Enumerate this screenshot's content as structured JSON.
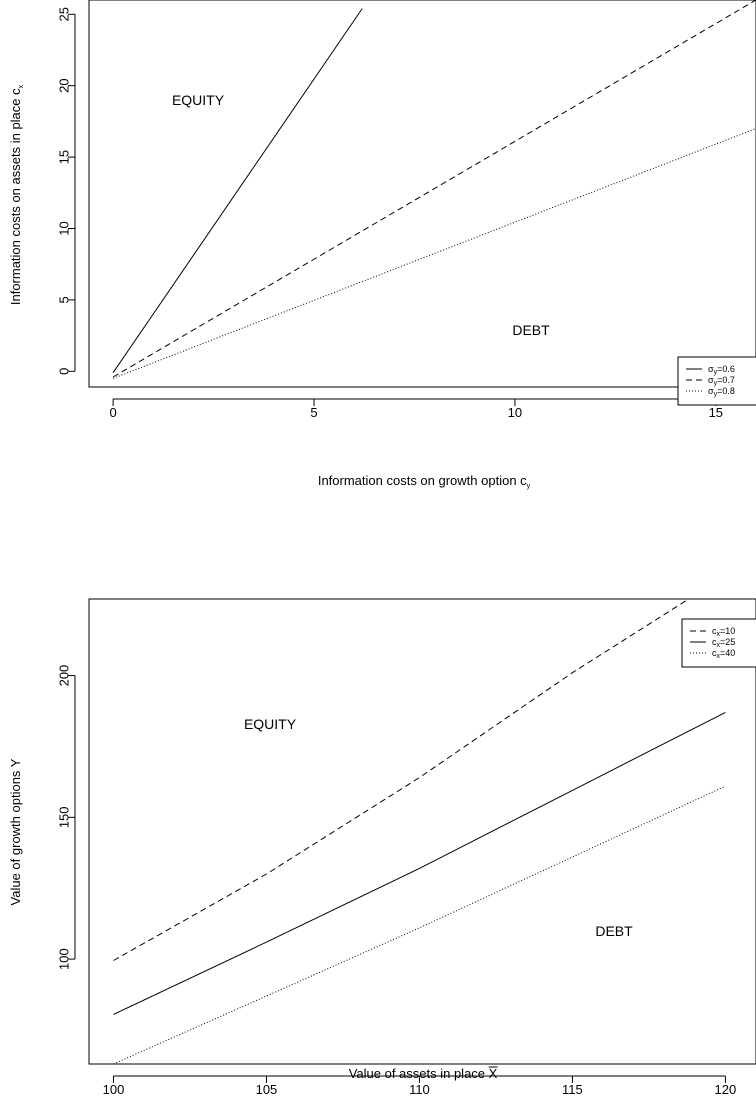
{
  "chart_data": [
    {
      "type": "line",
      "xlabel": "Information costs on growth option c",
      "xlabel_sub": "y",
      "ylabel": "Information costs on assets in place c",
      "ylabel_sub": "x",
      "xlim": [
        -0.6,
        16
      ],
      "ylim": [
        -1.1,
        26
      ],
      "xticks": [
        0,
        5,
        10,
        15
      ],
      "yticks": [
        0,
        5,
        10,
        15,
        20,
        25
      ],
      "region_labels": [
        "EQUITY",
        "DEBT"
      ],
      "legend": {
        "position": "bottom-right"
      },
      "series": [
        {
          "name": "σ",
          "name_sub": "y",
          "name_tail": "=0.6",
          "dash": "solid",
          "x": [
            0,
            6.2
          ],
          "y": [
            -0.1,
            25.4
          ]
        },
        {
          "name": "σ",
          "name_sub": "y",
          "name_tail": "=0.7",
          "dash": "dashed",
          "x": [
            0,
            16
          ],
          "y": [
            -0.4,
            26
          ]
        },
        {
          "name": "σ",
          "name_sub": "y",
          "name_tail": "=0.8",
          "dash": "dotted",
          "x": [
            0,
            16
          ],
          "y": [
            -0.5,
            17
          ]
        }
      ]
    },
    {
      "type": "line",
      "xlabel": "Value of assets in place X",
      "ylabel": "Value of growth options Y",
      "xlim": [
        99.2,
        121
      ],
      "ylim": [
        63,
        227
      ],
      "xticks": [
        100,
        105,
        110,
        115,
        120
      ],
      "yticks": [
        100,
        150,
        200
      ],
      "region_labels": [
        "EQUITY",
        "DEBT"
      ],
      "legend": {
        "position": "bottom-right"
      },
      "series": [
        {
          "name": "c",
          "name_sub": "x",
          "name_tail": "=10",
          "dash": "dashed",
          "x": [
            100,
            105,
            110,
            115,
            118.8
          ],
          "y": [
            99.5,
            130,
            164,
            201,
            227
          ]
        },
        {
          "name": "c",
          "name_sub": "x",
          "name_tail": "=25",
          "dash": "solid",
          "x": [
            100,
            105,
            110,
            115,
            120
          ],
          "y": [
            80.5,
            106,
            132,
            159.5,
            187
          ]
        },
        {
          "name": "c",
          "name_sub": "x",
          "name_tail": "=40",
          "dash": "dotted",
          "x": [
            100,
            105,
            110,
            115,
            120
          ],
          "y": [
            63,
            87,
            111,
            136,
            161
          ]
        }
      ]
    }
  ]
}
